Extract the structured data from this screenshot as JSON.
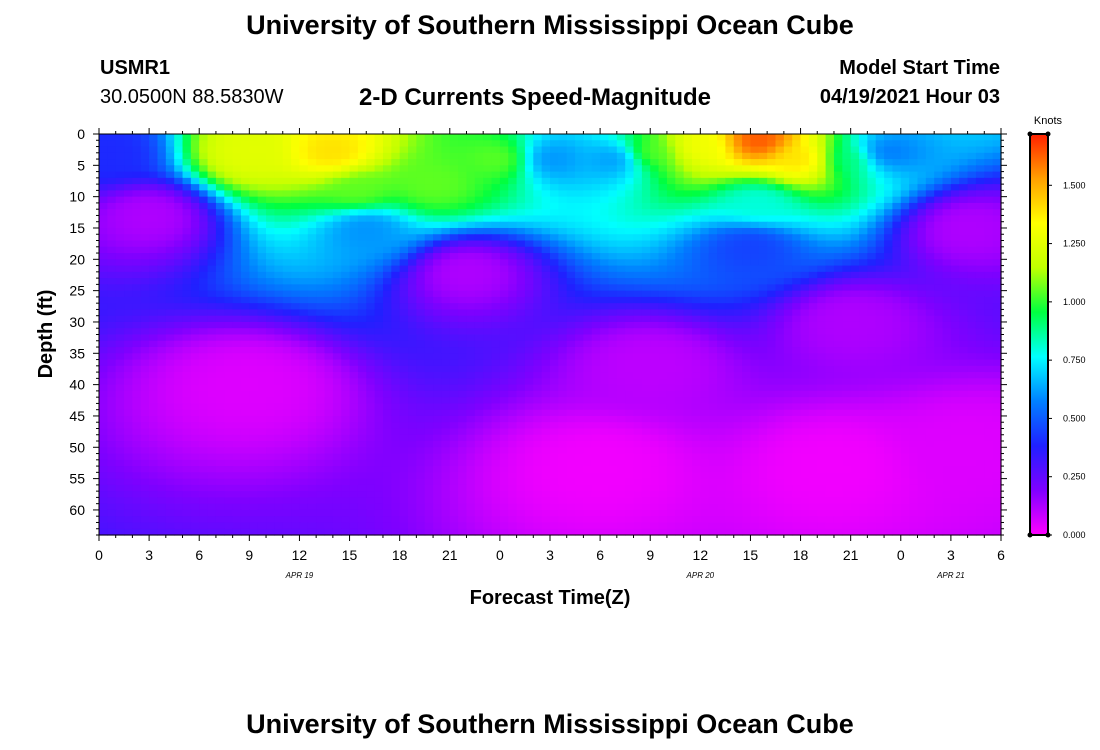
{
  "page": {
    "title_top": "University of Southern Mississippi Ocean Cube",
    "title_bottom": "University of Southern Mississippi Ocean Cube",
    "station_id": "USMR1",
    "station_coords": "30.0500N  88.5830W",
    "plot_title": "2-D Currents Speed-Magnitude",
    "model_start_label": "Model Start Time",
    "model_start_value": "04/19/2021 Hour 03"
  },
  "chart_data": {
    "type": "heatmap",
    "title": "2-D Currents Speed-Magnitude",
    "xlabel": "Forecast Time(Z)",
    "ylabel": "Depth (ft)",
    "x_tick_labels": [
      "0",
      "3",
      "6",
      "9",
      "12",
      "15",
      "18",
      "21",
      "0",
      "3",
      "6",
      "9",
      "12",
      "15",
      "18",
      "21",
      "0",
      "3",
      "6"
    ],
    "x_hours": [
      0,
      3,
      6,
      9,
      12,
      15,
      18,
      21,
      24,
      27,
      30,
      33,
      36,
      39,
      42,
      45,
      48,
      51,
      54
    ],
    "xlim": [
      0,
      54
    ],
    "date_labels": [
      {
        "text": "APR  19",
        "hour": 12
      },
      {
        "text": "APR  20",
        "hour": 36
      },
      {
        "text": "APR  21",
        "hour": 51
      }
    ],
    "y_ticks": [
      0,
      5,
      10,
      15,
      20,
      25,
      30,
      35,
      40,
      45,
      50,
      55,
      60
    ],
    "ylim": [
      0,
      64
    ],
    "y_inverted": true,
    "colorbar": {
      "label": "Knots",
      "ticks": [
        "0.000",
        "0.250",
        "0.500",
        "0.750",
        "1.000",
        "1.250",
        "1.500"
      ],
      "tick_values": [
        0,
        0.25,
        0.5,
        0.75,
        1.0,
        1.25,
        1.5
      ],
      "range": [
        0,
        1.72
      ],
      "colormap": [
        "#ff00ff",
        "#8000ff",
        "#2020ff",
        "#0080ff",
        "#00ffff",
        "#00ff40",
        "#c0ff00",
        "#ffff00",
        "#ffa000",
        "#ff2000"
      ]
    },
    "grid": false,
    "legend": "colorbar-right",
    "features": [
      {
        "hour": 0.5,
        "depth": 3,
        "speed": 0.4
      },
      {
        "hour": 3,
        "depth": 13,
        "speed": 0.12
      },
      {
        "hour": 9,
        "depth": 3,
        "speed": 1.25
      },
      {
        "hour": 14,
        "depth": 3,
        "speed": 1.4
      },
      {
        "hour": 15.5,
        "depth": 9,
        "speed": 1.05
      },
      {
        "hour": 16,
        "depth": 15,
        "speed": 0.6
      },
      {
        "hour": 20,
        "depth": 8,
        "speed": 1.05
      },
      {
        "hour": 24,
        "depth": 4,
        "speed": 1.05
      },
      {
        "hour": 27,
        "depth": 4,
        "speed": 0.6
      },
      {
        "hour": 22,
        "depth": 22,
        "speed": 0.12
      },
      {
        "hour": 9,
        "depth": 40,
        "speed": 0.05
      },
      {
        "hour": 30,
        "depth": 53,
        "speed": 0.02
      },
      {
        "hour": 33,
        "depth": 37,
        "speed": 0.1
      },
      {
        "hour": 31,
        "depth": 4,
        "speed": 0.6
      },
      {
        "hour": 33,
        "depth": 3,
        "speed": 1.05
      },
      {
        "hour": 36,
        "depth": 2,
        "speed": 1.3
      },
      {
        "hour": 39.5,
        "depth": 1,
        "speed": 1.65
      },
      {
        "hour": 42,
        "depth": 4,
        "speed": 1.4
      },
      {
        "hour": 45,
        "depth": 4,
        "speed": 0.9
      },
      {
        "hour": 39.5,
        "depth": 11,
        "speed": 0.8
      },
      {
        "hour": 39,
        "depth": 18,
        "speed": 0.45
      },
      {
        "hour": 47,
        "depth": 3,
        "speed": 0.55
      },
      {
        "hour": 44,
        "depth": 53,
        "speed": 0.02
      },
      {
        "hour": 52,
        "depth": 50,
        "speed": 0.05
      },
      {
        "hour": 52,
        "depth": 15,
        "speed": 0.12
      },
      {
        "hour": 45,
        "depth": 30,
        "speed": 0.12
      }
    ]
  }
}
